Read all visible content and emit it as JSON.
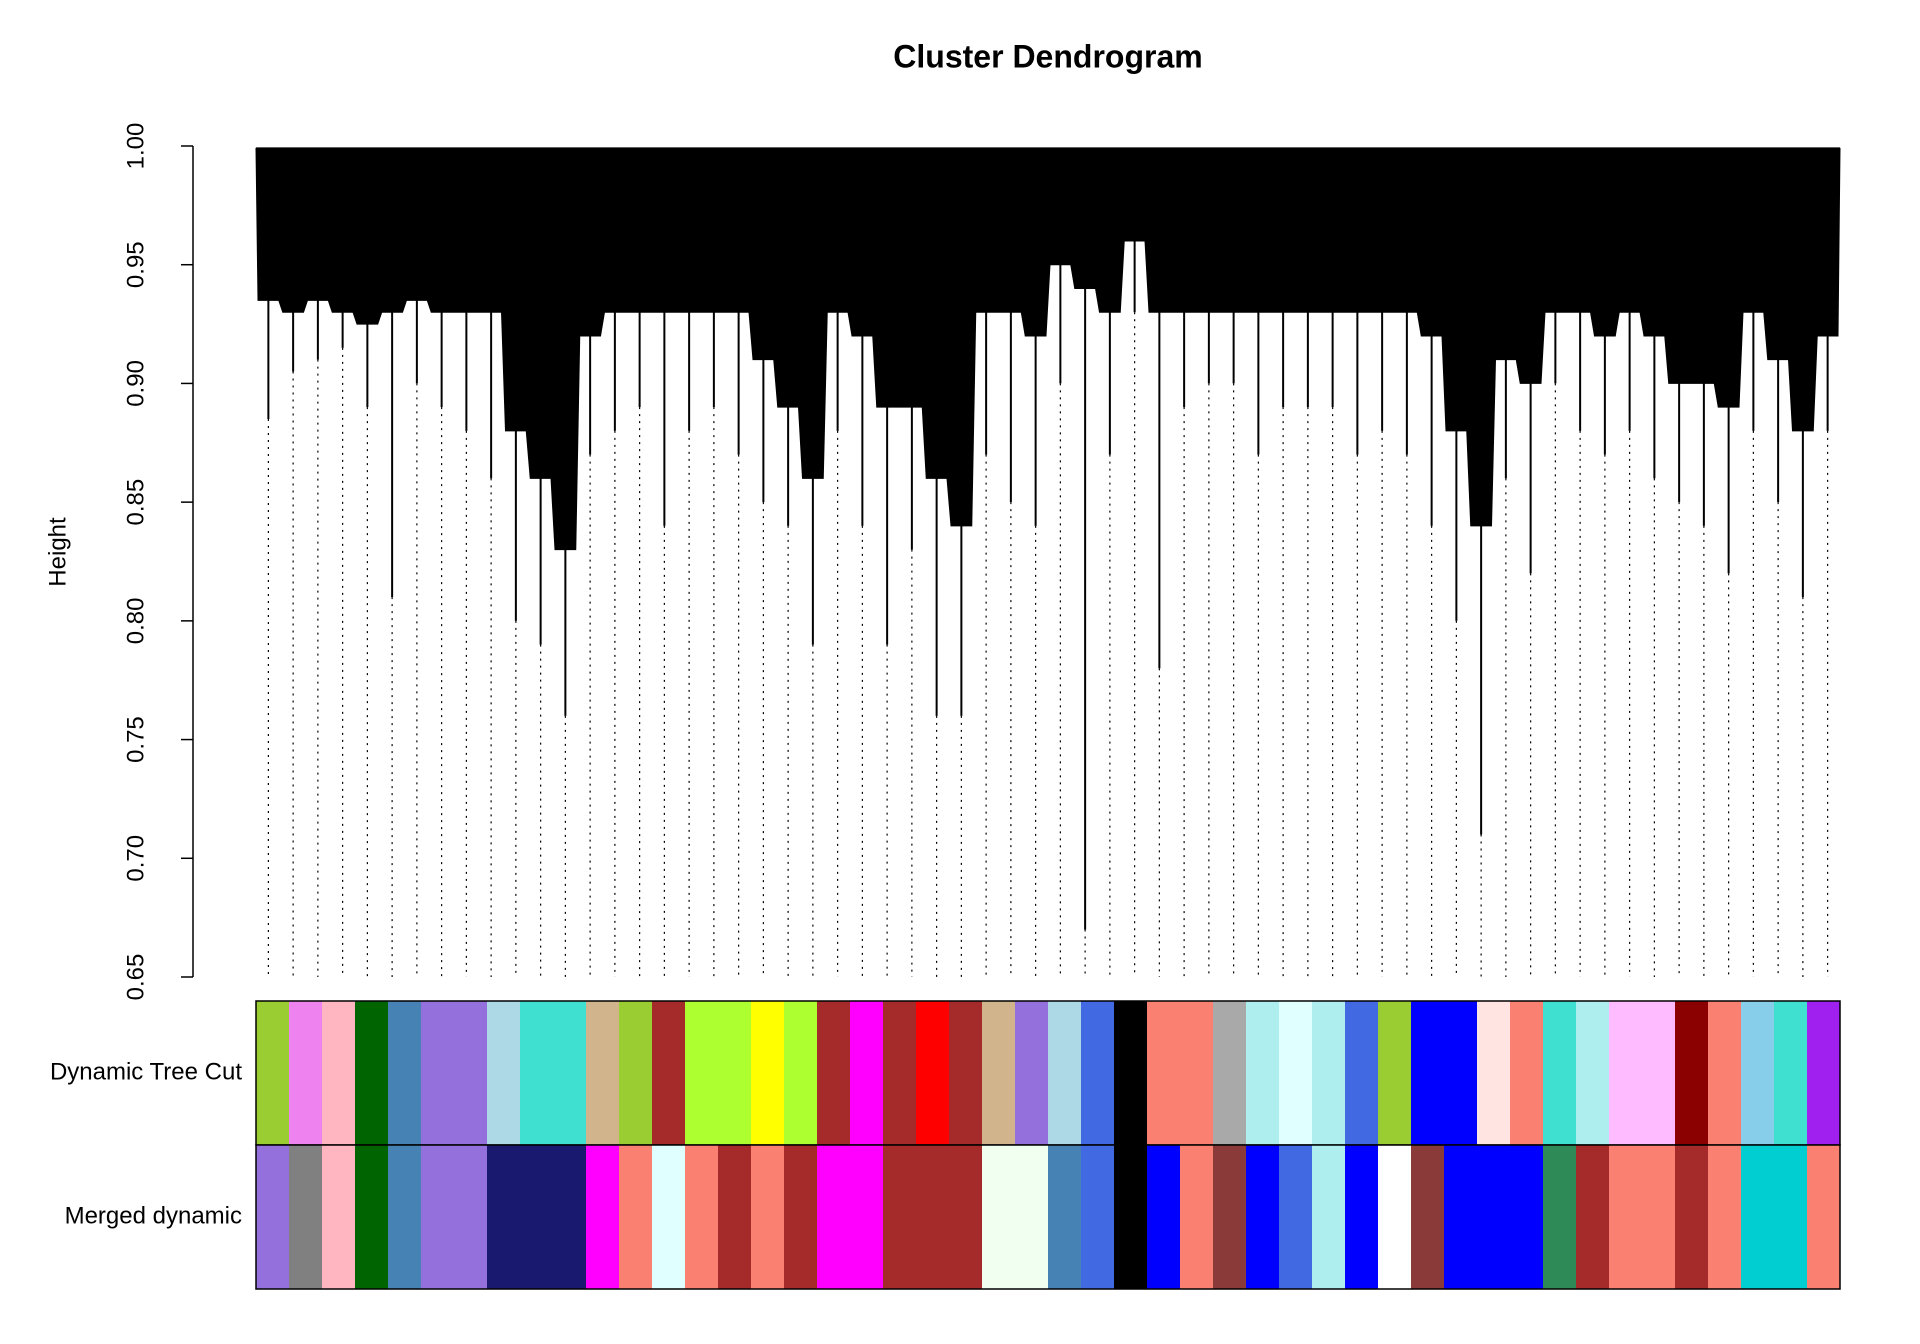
{
  "chart_data": {
    "type": "dendrogram",
    "title": "Cluster Dendrogram",
    "y_label": "Height",
    "ylim": [
      0.65,
      1.0
    ],
    "yticks": [
      0.65,
      {
        "value": 0.7,
        "label": "0.70"
      },
      0.75,
      {
        "value": 0.8,
        "label": "0.80"
      },
      0.85,
      {
        "value": 0.9,
        "label": "0.90"
      },
      0.95,
      {
        "value": 1.0,
        "label": "1.00"
      }
    ],
    "root_height": 0.999,
    "branch_tips": [
      0.885,
      0.905,
      0.91,
      0.915,
      0.89,
      0.81,
      0.9,
      0.89,
      0.88,
      0.86,
      0.8,
      0.79,
      0.76,
      0.87,
      0.88,
      0.89,
      0.84,
      0.88,
      0.89,
      0.87,
      0.85,
      0.84,
      0.79,
      0.88,
      0.84,
      0.79,
      0.83,
      0.76,
      0.76,
      0.87,
      0.85,
      0.84,
      0.9,
      0.67,
      0.87,
      0.93,
      0.78,
      0.89,
      0.9,
      0.9,
      0.87,
      0.89,
      0.89,
      0.89,
      0.87,
      0.88,
      0.87,
      0.84,
      0.8,
      0.71,
      0.86,
      0.82,
      0.9,
      0.88,
      0.87,
      0.88,
      0.86,
      0.85,
      0.84,
      0.82,
      0.88,
      0.85,
      0.81,
      0.88
    ],
    "dense_floor": [
      0.935,
      0.93,
      0.935,
      0.93,
      0.925,
      0.93,
      0.935,
      0.93,
      0.93,
      0.93,
      0.88,
      0.86,
      0.83,
      0.92,
      0.93,
      0.93,
      0.93,
      0.93,
      0.93,
      0.93,
      0.91,
      0.89,
      0.86,
      0.93,
      0.92,
      0.89,
      0.89,
      0.86,
      0.84,
      0.93,
      0.93,
      0.92,
      0.95,
      0.94,
      0.93,
      0.96,
      0.93,
      0.93,
      0.93,
      0.93,
      0.93,
      0.93,
      0.93,
      0.93,
      0.93,
      0.93,
      0.93,
      0.92,
      0.88,
      0.84,
      0.91,
      0.9,
      0.93,
      0.93,
      0.92,
      0.93,
      0.92,
      0.9,
      0.9,
      0.89,
      0.93,
      0.91,
      0.88,
      0.92
    ],
    "color_rows": [
      {
        "name": "Dynamic Tree Cut",
        "colors": [
          "#9acd32",
          "#ee82ee",
          "#ffb6c1",
          "#006400",
          "#4682b4",
          "#9370db",
          "#9370db",
          "#add8e6",
          "#40e0d0",
          "#40e0d0",
          "#d2b48c",
          "#9acd32",
          "#a52a2a",
          "#adff2f",
          "#adff2f",
          "#ffff00",
          "#adff2f",
          "#a52a2a",
          "#ff00ff",
          "#a52a2a",
          "#ff0000",
          "#a52a2a",
          "#d2b48c",
          "#9370db",
          "#add8e6",
          "#4169e1",
          "#000000",
          "#fa8072",
          "#fa8072",
          "#a9a9a9",
          "#afeeee",
          "#e0ffff",
          "#afeeee",
          "#4169e1",
          "#9acd32",
          "#0000ff",
          "#0000ff",
          "#ffe4e1",
          "#fa8072",
          "#40e0d0",
          "#afeeee",
          "#ffbbff",
          "#ffbbff",
          "#8b0000",
          "#fa8072",
          "#87ceeb",
          "#40e0d0",
          "#a020f0"
        ]
      },
      {
        "name": "Merged dynamic",
        "colors": [
          "#9370db",
          "#808080",
          "#ffb6c1",
          "#006400",
          "#4682b4",
          "#9370db",
          "#9370db",
          "#191970",
          "#191970",
          "#191970",
          "#ff00ff",
          "#fa8072",
          "#e0ffff",
          "#fa8072",
          "#a52a2a",
          "#fa8072",
          "#a52a2a",
          "#ff00ff",
          "#ff00ff",
          "#a52a2a",
          "#a52a2a",
          "#a52a2a",
          "#f0fff0",
          "#f0fff0",
          "#4682b4",
          "#4169e1",
          "#000000",
          "#0000ff",
          "#fa8072",
          "#8b3a3a",
          "#0000ff",
          "#4169e1",
          "#afeeee",
          "#0000ff",
          "#ffffff",
          "#8b3a3a",
          "#0000ff",
          "#0000ff",
          "#0000ff",
          "#2e8b57",
          "#a52a2a",
          "#fa8072",
          "#fa8072",
          "#a52a2a",
          "#fa8072",
          "#00ced1",
          "#00ced1",
          "#fa8072"
        ]
      }
    ]
  }
}
